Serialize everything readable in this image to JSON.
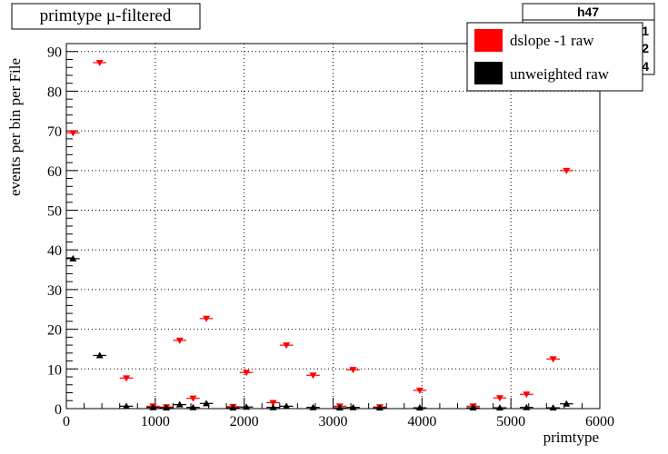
{
  "title_box": {
    "text": "primtype μ-filtered"
  },
  "stats_box": {
    "name": "h47",
    "partial_values": [
      "91",
      "22",
      "54"
    ]
  },
  "legend": {
    "entries": [
      {
        "label": "dslope -1 raw",
        "color": "#ff0000"
      },
      {
        "label": "unweighted raw",
        "color": "#000000"
      }
    ]
  },
  "chart_data": {
    "type": "scatter",
    "xlabel": "primtype",
    "ylabel": "events per bin per File",
    "xlim": [
      0,
      6000
    ],
    "ylim": [
      0,
      92
    ],
    "x_ticks": [
      0,
      1000,
      2000,
      3000,
      4000,
      5000,
      6000
    ],
    "y_ticks": [
      0,
      10,
      20,
      30,
      40,
      50,
      60,
      70,
      80,
      90
    ],
    "grid": true,
    "legend_position": "top-right",
    "series": [
      {
        "name": "dslope -1 raw",
        "color": "#ff0000",
        "marker": "triangle-down",
        "points": [
          {
            "x": 75,
            "y": 69.5
          },
          {
            "x": 375,
            "y": 87.2
          },
          {
            "x": 675,
            "y": 7.7
          },
          {
            "x": 975,
            "y": 0.6
          },
          {
            "x": 1125,
            "y": 0.4
          },
          {
            "x": 1275,
            "y": 17.2
          },
          {
            "x": 1425,
            "y": 2.6
          },
          {
            "x": 1575,
            "y": 22.7
          },
          {
            "x": 1875,
            "y": 0.5
          },
          {
            "x": 2025,
            "y": 9.1
          },
          {
            "x": 2325,
            "y": 1.5
          },
          {
            "x": 2475,
            "y": 16.0
          },
          {
            "x": 2775,
            "y": 8.4
          },
          {
            "x": 3075,
            "y": 0.6
          },
          {
            "x": 3225,
            "y": 9.8
          },
          {
            "x": 3525,
            "y": 0.4
          },
          {
            "x": 3975,
            "y": 4.6
          },
          {
            "x": 4575,
            "y": 0.6
          },
          {
            "x": 4875,
            "y": 2.7
          },
          {
            "x": 5175,
            "y": 3.6
          },
          {
            "x": 5475,
            "y": 12.5
          },
          {
            "x": 5625,
            "y": 60.0
          }
        ]
      },
      {
        "name": "unweighted raw",
        "color": "#000000",
        "marker": "triangle-up",
        "points": [
          {
            "x": 75,
            "y": 37.8
          },
          {
            "x": 375,
            "y": 13.4
          },
          {
            "x": 675,
            "y": 0.6
          },
          {
            "x": 975,
            "y": 0.3
          },
          {
            "x": 1125,
            "y": 0.2
          },
          {
            "x": 1275,
            "y": 1.0
          },
          {
            "x": 1425,
            "y": 0.3
          },
          {
            "x": 1575,
            "y": 1.3
          },
          {
            "x": 1875,
            "y": 0.2
          },
          {
            "x": 2025,
            "y": 0.4
          },
          {
            "x": 2325,
            "y": 0.3
          },
          {
            "x": 2475,
            "y": 0.6
          },
          {
            "x": 2775,
            "y": 0.3
          },
          {
            "x": 3075,
            "y": 0.2
          },
          {
            "x": 3225,
            "y": 0.3
          },
          {
            "x": 3525,
            "y": 0.2
          },
          {
            "x": 3975,
            "y": 0.2
          },
          {
            "x": 4575,
            "y": 0.2
          },
          {
            "x": 4875,
            "y": 0.2
          },
          {
            "x": 5175,
            "y": 0.3
          },
          {
            "x": 5475,
            "y": 0.2
          },
          {
            "x": 5625,
            "y": 1.2
          }
        ]
      }
    ]
  }
}
